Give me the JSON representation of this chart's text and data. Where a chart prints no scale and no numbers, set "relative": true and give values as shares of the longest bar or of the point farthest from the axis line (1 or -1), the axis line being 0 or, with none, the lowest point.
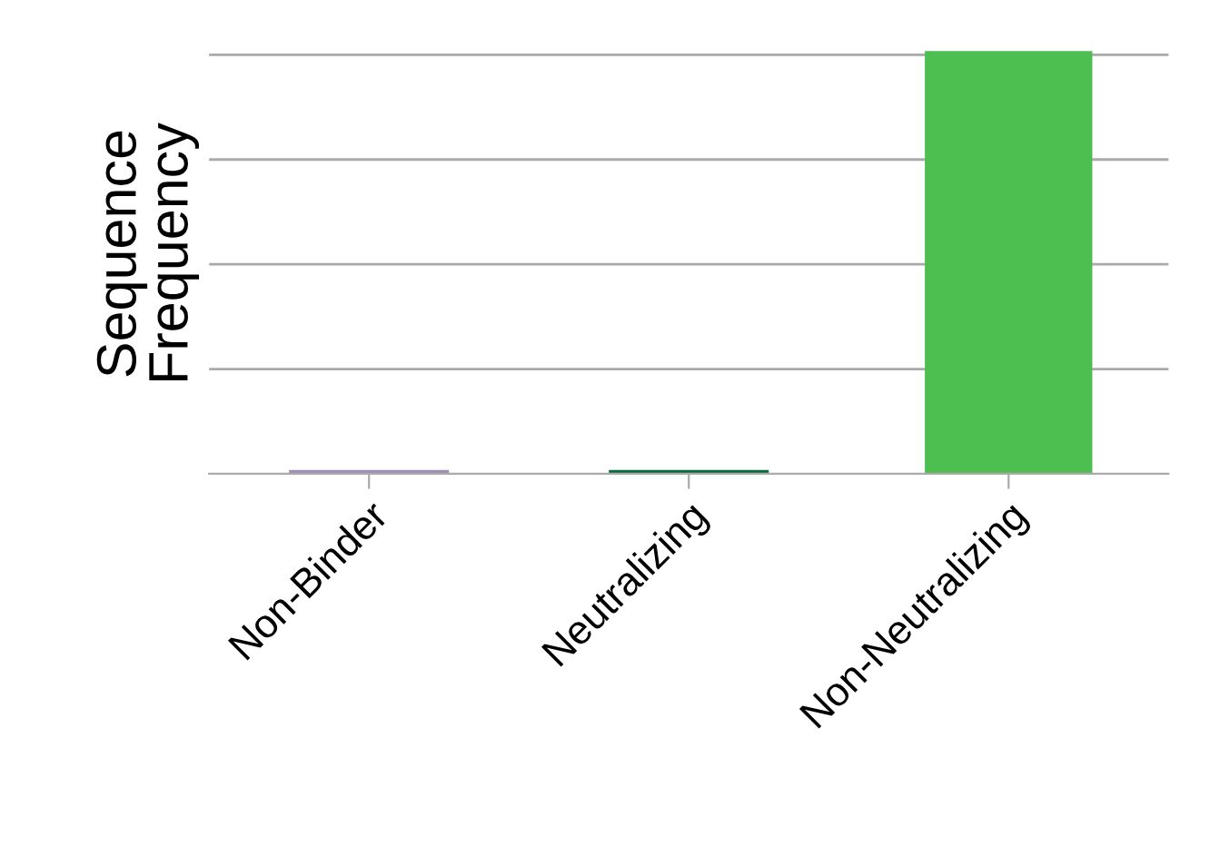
{
  "chart_data": {
    "type": "bar",
    "relative": true,
    "ylabel": "Sequence\nFrequency",
    "categories": [
      "Non-Binder",
      "Neutralizing",
      "Non-Neutralizing"
    ],
    "values": [
      0,
      0,
      1
    ],
    "colors": [
      "#a08cb4",
      "#0a6b3a",
      "#4cbf50"
    ],
    "grid": "y",
    "tick_labels": "x"
  }
}
